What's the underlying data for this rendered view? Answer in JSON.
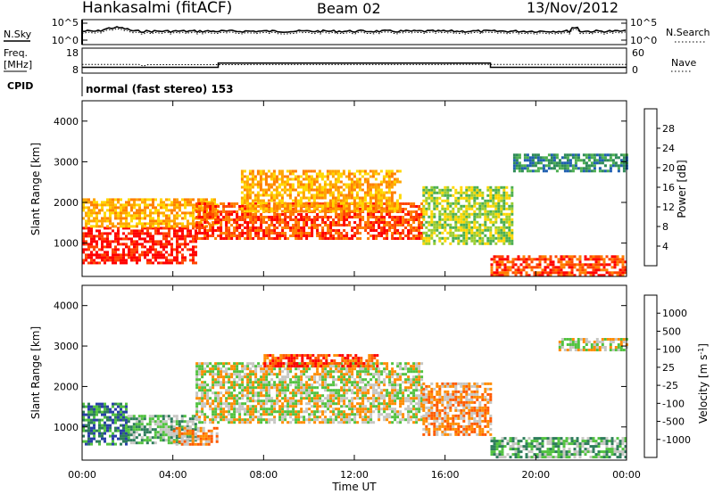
{
  "header": {
    "station": "Hankasalmi (fitACF)",
    "beam": "Beam 02",
    "date": "13/Nov/2012"
  },
  "left_labels": {
    "nsky": "N.Sky",
    "freq_line1": "Freq.",
    "freq_line2": "[MHz]",
    "cpid": "CPID"
  },
  "right_labels": {
    "nsearch": "N.Search",
    "nave": "Nave"
  },
  "cpid_text": "normal (fast stereo) 153",
  "colors": {
    "power": [
      "#0000ff",
      "#1f5fb0",
      "#2e8b57",
      "#4caf50",
      "#9acd32",
      "#ffd700",
      "#ffa500",
      "#ff7f00",
      "#ff4500",
      "#ff0000"
    ],
    "velocity": [
      "#2a3fa8",
      "#2e7d5b",
      "#52c240",
      "#c6c6c2",
      "#ff8c00",
      "#ff5a00",
      "#ff0000"
    ]
  },
  "chart_data": [
    {
      "type": "line",
      "panel": "noise",
      "left_ticks": [
        "10^5",
        "10^0"
      ],
      "right_ticks": [
        "10^5",
        "10^0"
      ],
      "series": [
        {
          "name": "N.Sky",
          "style": "solid"
        },
        {
          "name": "N.Search",
          "style": "dotted"
        }
      ]
    },
    {
      "type": "line",
      "panel": "frequency",
      "left_ticks": [
        "18",
        "8"
      ],
      "right_ticks": [
        "60",
        "0"
      ],
      "freq_mhz": [
        {
          "x": 0,
          "y": 11.5
        },
        {
          "x": 2.5,
          "y": 11.5
        },
        {
          "x": 2.7,
          "y": 10.8
        },
        {
          "x": 2.9,
          "y": 11.4
        },
        {
          "x": 24,
          "y": 11.5
        }
      ],
      "nave": [
        {
          "x": 0,
          "y": 14
        },
        {
          "x": 6,
          "y": 14
        },
        {
          "x": 6,
          "y": 24
        },
        {
          "x": 18,
          "y": 24
        },
        {
          "x": 18,
          "y": 14
        },
        {
          "x": 24,
          "y": 14
        }
      ]
    },
    {
      "type": "heatmap",
      "panel": "power",
      "ylabel": "Slant Range [km]",
      "y_ticks": [
        "1000",
        "2000",
        "3000",
        "4000"
      ],
      "ylim": [
        180,
        4500
      ],
      "xlim": [
        0,
        24
      ],
      "colorbar": {
        "label": "Power [dB]",
        "ticks": [
          "4",
          "8",
          "12",
          "16",
          "20",
          "24",
          "28"
        ]
      },
      "regions": [
        {
          "x0": 0,
          "x1": 5,
          "y0": 500,
          "y1": 1400,
          "level": 9
        },
        {
          "x0": 0,
          "x1": 6,
          "y0": 1400,
          "y1": 2100,
          "level": 6
        },
        {
          "x0": 5,
          "x1": 15,
          "y0": 1100,
          "y1": 2000,
          "level": 8
        },
        {
          "x0": 7,
          "x1": 14,
          "y0": 1800,
          "y1": 2800,
          "level": 6
        },
        {
          "x0": 15,
          "x1": 19,
          "y0": 1000,
          "y1": 2400,
          "level": 4
        },
        {
          "x0": 18,
          "x1": 24,
          "y0": 200,
          "y1": 700,
          "level": 8
        },
        {
          "x0": 19,
          "x1": 24,
          "y0": 2800,
          "y1": 3200,
          "level": 2
        }
      ]
    },
    {
      "type": "heatmap",
      "panel": "velocity",
      "ylabel": "Slant Range [km]",
      "y_ticks": [
        "1000",
        "2000",
        "3000",
        "4000"
      ],
      "ylim": [
        180,
        4500
      ],
      "xlim": [
        0,
        24
      ],
      "colorbar": {
        "label": "Velocity [m s^-1]",
        "ticks": [
          "1000",
          "500",
          "100",
          "25",
          "-25",
          "-100",
          "-500",
          "-1000"
        ]
      },
      "regions": [
        {
          "x0": 0,
          "x1": 2,
          "y0": 600,
          "y1": 1600,
          "level": 1
        },
        {
          "x0": 2,
          "x1": 5,
          "y0": 600,
          "y1": 1300,
          "level": 2
        },
        {
          "x0": 4,
          "x1": 6,
          "y0": 600,
          "y1": 1000,
          "level": 4
        },
        {
          "x0": 5,
          "x1": 15,
          "y0": 1100,
          "y1": 2600,
          "level": 3
        },
        {
          "x0": 8,
          "x1": 13,
          "y0": 2500,
          "y1": 2800,
          "level": 5
        },
        {
          "x0": 15,
          "x1": 18,
          "y0": 800,
          "y1": 2100,
          "level": 4
        },
        {
          "x0": 18,
          "x1": 24,
          "y0": 250,
          "y1": 750,
          "level": 2
        },
        {
          "x0": 21,
          "x1": 24,
          "y0": 2900,
          "y1": 3200,
          "level": 3
        }
      ]
    }
  ],
  "x_axis": {
    "ticks": [
      "00:00",
      "04:00",
      "08:00",
      "12:00",
      "16:00",
      "20:00",
      "00:00"
    ],
    "label": "Time UT"
  }
}
